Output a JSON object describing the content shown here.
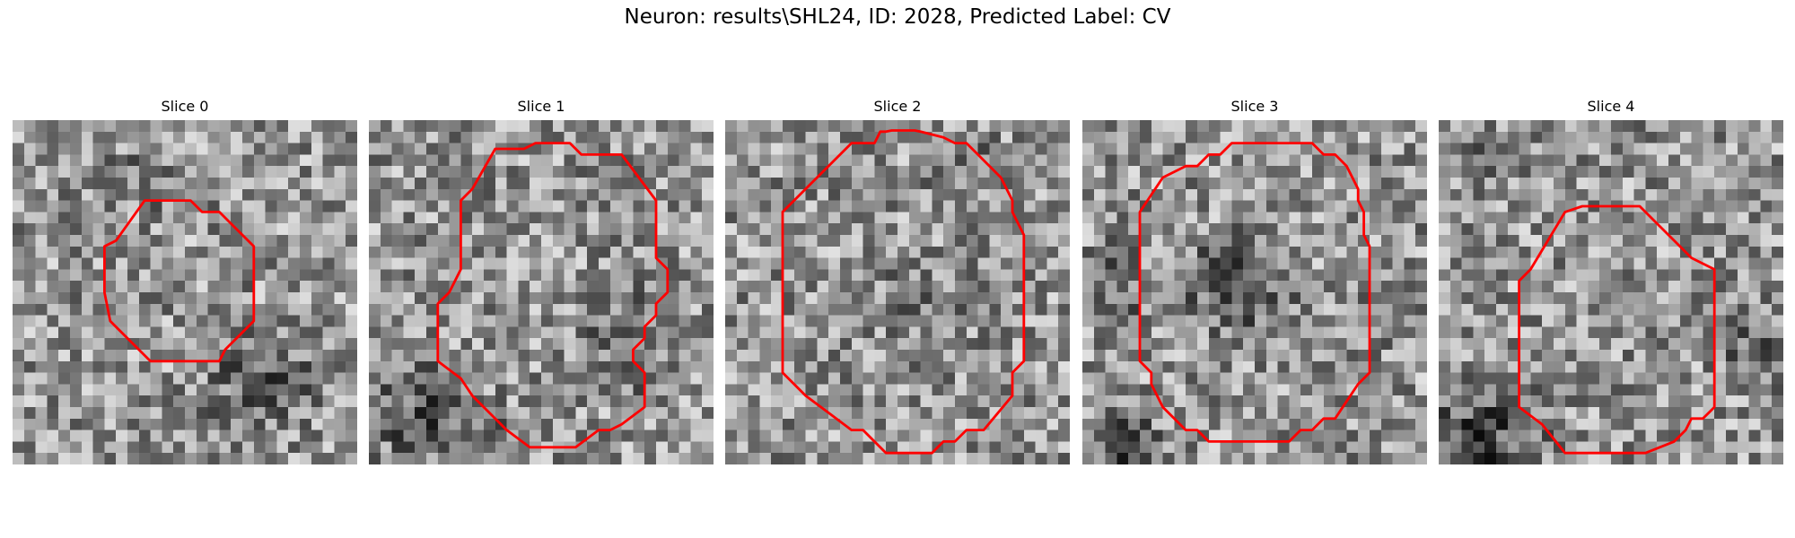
{
  "figure": {
    "title": "Neuron: results\\SHL24, ID: 2028, Predicted Label: CV",
    "contour_color": "#ff0000"
  },
  "panels": [
    {
      "title": "Slice 0"
    },
    {
      "title": "Slice 1"
    },
    {
      "title": "Slice 2"
    },
    {
      "title": "Slice 3"
    },
    {
      "title": "Slice 4"
    }
  ]
}
